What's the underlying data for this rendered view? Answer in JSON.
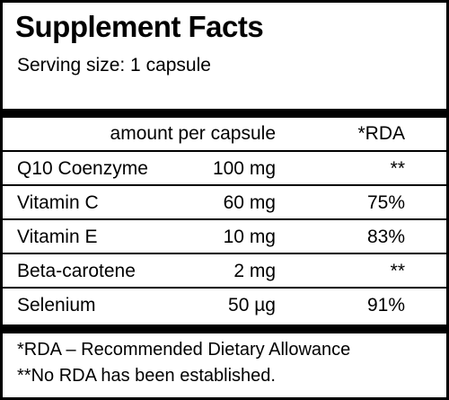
{
  "title": "Supplement Facts",
  "serving_size": "Serving size: 1 capsule",
  "header": {
    "amount": "amount per capsule",
    "rda": "*RDA"
  },
  "rows": [
    {
      "name": "Q10 Coenzyme",
      "amount": "100 mg",
      "rda": "**"
    },
    {
      "name": "Vitamin C",
      "amount": "60 mg",
      "rda": "75%"
    },
    {
      "name": "Vitamin E",
      "amount": "10 mg",
      "rda": "83%"
    },
    {
      "name": "Beta-carotene",
      "amount": "2 mg",
      "rda": "**"
    },
    {
      "name": "Selenium",
      "amount": "50 µg",
      "rda": "91%"
    }
  ],
  "footnotes": [
    "*RDA – Recommended Dietary Allowance",
    "**No RDA has been established."
  ]
}
